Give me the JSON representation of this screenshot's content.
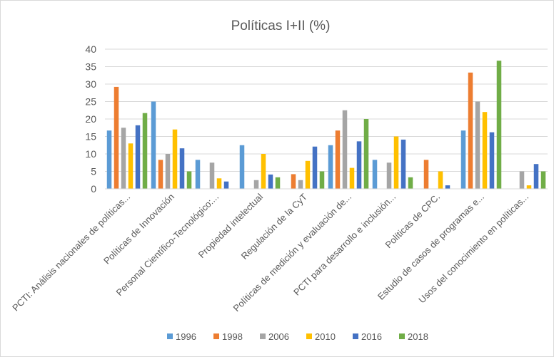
{
  "chart_data": {
    "type": "bar",
    "title": "Políticas I+II (%)",
    "categories": [
      "PCTI: Análisis nacionales de políticas...",
      "Políticas de Innovación",
      "Personal Científico-Tecnológico:...",
      "Propiedad intelectual",
      "Regulación de la CyT",
      "Políticas de medición y evaluación de...",
      "PCTI para desarrollo e inclusión...",
      "Políticas de CPC.",
      "Estudio de casos de programas e...",
      "Usos del conocimiento en políticas..."
    ],
    "series": [
      {
        "name": "1996",
        "color": "#5b9bd5",
        "values": [
          16.7,
          25.0,
          8.3,
          12.5,
          0,
          12.5,
          8.3,
          0,
          16.7,
          0
        ]
      },
      {
        "name": "1998",
        "color": "#ed7d31",
        "values": [
          29.2,
          8.3,
          0,
          0,
          4.2,
          16.7,
          0,
          8.3,
          33.3,
          0
        ]
      },
      {
        "name": "2006",
        "color": "#a5a5a5",
        "values": [
          17.5,
          10.0,
          7.5,
          2.5,
          2.5,
          22.5,
          7.5,
          0,
          25.0,
          5.0
        ]
      },
      {
        "name": "2010",
        "color": "#ffc000",
        "values": [
          13.0,
          17.0,
          3.0,
          10.0,
          8.0,
          6.0,
          15.0,
          5.0,
          22.0,
          1.0
        ]
      },
      {
        "name": "2016",
        "color": "#4472c4",
        "values": [
          18.2,
          11.6,
          2.1,
          4.1,
          12.1,
          13.6,
          14.1,
          1.0,
          16.2,
          7.1
        ]
      },
      {
        "name": "2018",
        "color": "#70ad47",
        "values": [
          21.7,
          5.0,
          0,
          3.3,
          5.0,
          20.0,
          3.3,
          0,
          36.7,
          5.0
        ]
      }
    ],
    "ylim": [
      0,
      40
    ],
    "yticks": [
      0,
      5,
      10,
      15,
      20,
      25,
      30,
      35,
      40
    ],
    "grid": true,
    "legend_position": "bottom"
  }
}
